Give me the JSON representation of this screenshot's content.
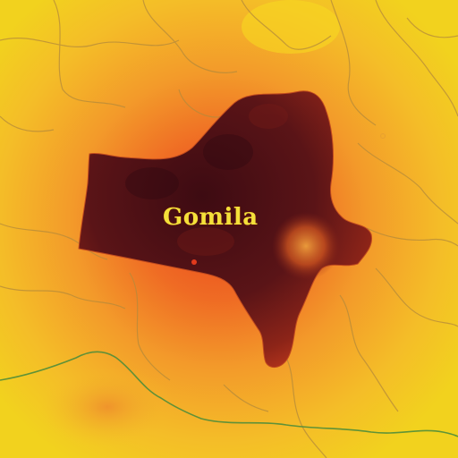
{
  "map": {
    "region_label": "Gomila",
    "colors": {
      "background_outer": "#f3c020",
      "heat_mid": "#f08a28",
      "heat_hot": "#e24a1e",
      "region_fill": "#4a0f14",
      "region_core": "#3a0b12",
      "label_color": "#f4e03a",
      "border_lines": "#b58a3a",
      "river_green": "#4f8d3a"
    }
  }
}
